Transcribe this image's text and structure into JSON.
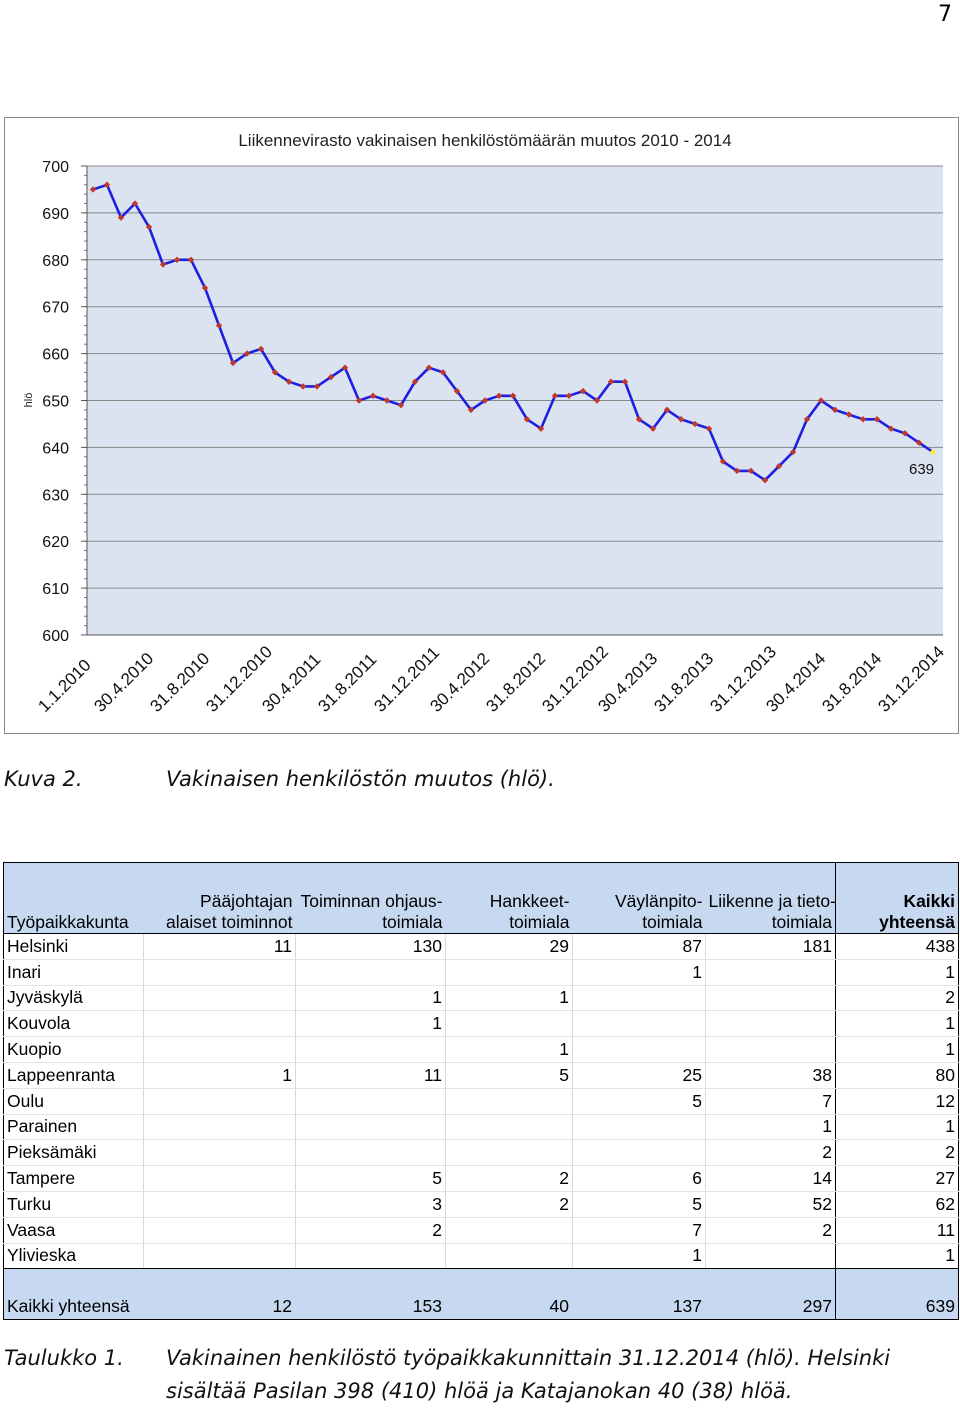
{
  "page_number": "7",
  "figure_caption": {
    "label": "Kuva 2.",
    "text": "Vakinaisen henkilöstön muutos (hlö)."
  },
  "chart_data": {
    "type": "line",
    "title": "Liikennevirasto vakinaisen henkilöstömäärän muutos 2010 - 2014",
    "ylabel": "hlö",
    "ylim": [
      600,
      700
    ],
    "yticks": [
      600,
      610,
      620,
      630,
      640,
      650,
      660,
      670,
      680,
      690,
      700
    ],
    "x_tick_labels": [
      "1.1.2010",
      "30.4.2010",
      "31.8.2010",
      "31.12.2010",
      "30.4.2011",
      "31.8.2011",
      "31.12.2011",
      "30.4.2012",
      "31.8.2012",
      "31.12.2012",
      "30.4.2013",
      "31.8.2013",
      "31.12.2013",
      "30.4.2014",
      "31.8.2014",
      "31.12.2014"
    ],
    "grid": "horizontal",
    "point_label": "639",
    "colors": {
      "line": "#1f1fe0",
      "marker": "#c0392b",
      "last_marker": "#f5e94a",
      "plot_bg": "#dbe3f0"
    },
    "series": [
      {
        "values": [
          695,
          696,
          689,
          692,
          687,
          679,
          680,
          680,
          674,
          666,
          658,
          660,
          661,
          656,
          654,
          653,
          653,
          655,
          657,
          650,
          651,
          650,
          649,
          654,
          657,
          656,
          652,
          648,
          650,
          651,
          651,
          646,
          644,
          651,
          651,
          652,
          650,
          654,
          654,
          646,
          644,
          648,
          646,
          645,
          644,
          637,
          635,
          635,
          633,
          636,
          639,
          646,
          650,
          648,
          647,
          646,
          646,
          644,
          643,
          641,
          639
        ]
      }
    ]
  },
  "table": {
    "headers": [
      "Työpaikkakunta",
      "Pääjohtajan alaiset toiminnot",
      "Toiminnan ohjaus-toimiala",
      "Hankkeet-toimiala",
      "Väylänpito-toimiala",
      "Liikenne ja tieto-toimiala",
      "Kaikki yhteensä"
    ],
    "header_lines": [
      [
        "Työpaikkakunta"
      ],
      [
        "Pääjohtajan",
        "alaiset toiminnot"
      ],
      [
        "Toiminnan ohjaus-",
        "toimiala"
      ],
      [
        "Hankkeet-",
        "toimiala"
      ],
      [
        "Väylänpito-",
        "toimiala"
      ],
      [
        "Liikenne ja tieto-",
        "toimiala"
      ],
      [
        "Kaikki",
        "yhteensä"
      ]
    ],
    "rows": [
      [
        "Helsinki",
        "11",
        "130",
        "29",
        "87",
        "181",
        "438"
      ],
      [
        "Inari",
        "",
        "",
        "",
        "1",
        "",
        "1"
      ],
      [
        "Jyväskylä",
        "",
        "1",
        "1",
        "",
        "",
        "2"
      ],
      [
        "Kouvola",
        "",
        "1",
        "",
        "",
        "",
        "1"
      ],
      [
        "Kuopio",
        "",
        "",
        "1",
        "",
        "",
        "1"
      ],
      [
        "Lappeenranta",
        "1",
        "11",
        "5",
        "25",
        "38",
        "80"
      ],
      [
        "Oulu",
        "",
        "",
        "",
        "5",
        "7",
        "12"
      ],
      [
        "Parainen",
        "",
        "",
        "",
        "",
        "1",
        "1"
      ],
      [
        "Pieksämäki",
        "",
        "",
        "",
        "",
        "2",
        "2"
      ],
      [
        "Tampere",
        "",
        "5",
        "2",
        "6",
        "14",
        "27"
      ],
      [
        "Turku",
        "",
        "3",
        "2",
        "5",
        "52",
        "62"
      ],
      [
        "Vaasa",
        "",
        "2",
        "",
        "7",
        "2",
        "11"
      ],
      [
        "Ylivieska",
        "",
        "",
        "",
        "1",
        "",
        "1"
      ]
    ],
    "total_row": [
      "Kaikki yhteensä",
      "12",
      "153",
      "40",
      "137",
      "297",
      "639"
    ]
  },
  "table_caption": {
    "label": "Taulukko 1.",
    "line1": "Vakinainen henkilöstö työpaikkakunnittain 31.12.2014 (hlö). Helsinki",
    "line2": "sisältää Pasilan 398 (410) hlöä ja Katajanokan 40 (38) hlöä."
  }
}
